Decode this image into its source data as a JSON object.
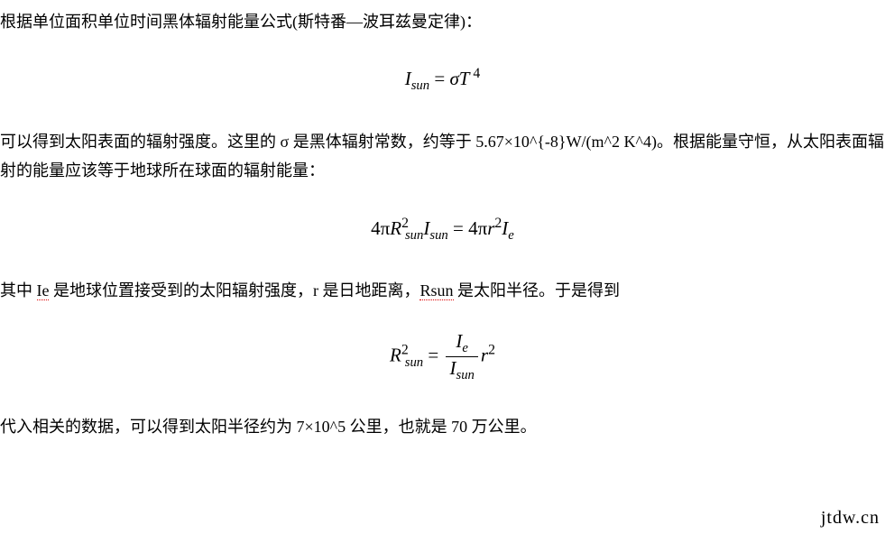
{
  "para1": "根据单位面积单位时间黑体辐射能量公式(斯特番—波耳兹曼定律)：",
  "formula1": {
    "lhs_I": "I",
    "lhs_sub": "sun",
    "eq": " = ",
    "sigma": "σ",
    "T": "T",
    "exp": " 4"
  },
  "para2": "可以得到太阳表面的辐射强度。这里的 σ 是黑体辐射常数，约等于 5.67×10^{-8}W/(m^2 K^4)。根据能量守恒，从太阳表面辐射的能量应该等于地球所在球面的辐射能量：",
  "formula2": {
    "l_4pi": "4π",
    "l_R": "R",
    "l_Rsub": "sun",
    "l_Rexp": "2",
    "l_I": "I",
    "l_Isub": "sun",
    "eq": " = ",
    "r_4pi": "4π",
    "r_r": "r",
    "r_rexp": "2",
    "r_I": "I",
    "r_Isub": "e"
  },
  "para3_pre": "其中 ",
  "para3_ie": "Ie",
  "para3_mid1": " 是地球位置接受到的太阳辐射强度，r 是日地距离，",
  "para3_rsun": "Rsun",
  "para3_mid2": " 是太阳半径。于是得到",
  "formula3": {
    "l_R": "R",
    "l_Rsub": "sun",
    "l_Rexp": "2",
    "eq": " = ",
    "num_I": "I",
    "num_sub": "e",
    "den_I": "I",
    "den_sub": "sun",
    "r_r": "r",
    "r_rexp": "2"
  },
  "para4": "代入相关的数据，可以得到太阳半径约为 7×10^5 公里，也就是 70 万公里。",
  "watermark": "jtdw.cn"
}
